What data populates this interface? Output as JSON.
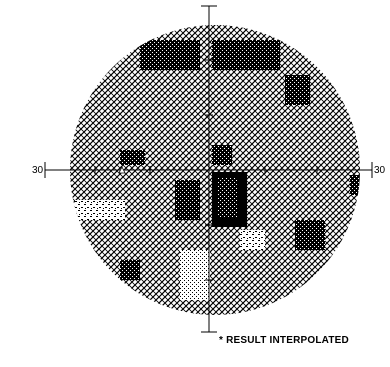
{
  "axes": {
    "left_label": "30",
    "right_label": "30"
  },
  "note": "* RESULT INTERPOLATED",
  "colors": {
    "light": "#c8c8c8",
    "medium": "#8c8c8c",
    "dark": "#5a5a5a",
    "black": "#000000"
  }
}
